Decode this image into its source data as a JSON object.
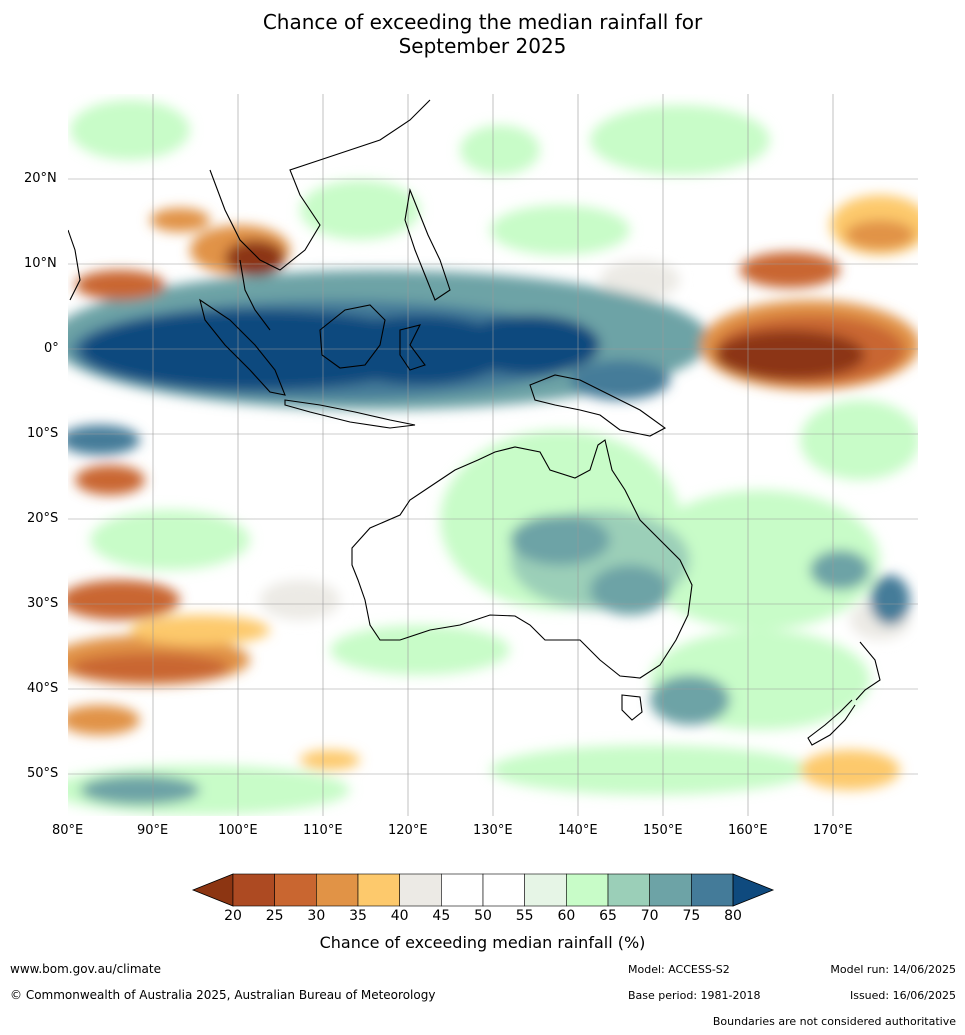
{
  "title_line1": "Chance of exceeding the median rainfall for",
  "title_line2": "September 2025",
  "map": {
    "lon_range": [
      80,
      180
    ],
    "lat_range": [
      -55,
      30
    ],
    "lon_ticks": [
      "80°E",
      "90°E",
      "100°E",
      "110°E",
      "120°E",
      "130°E",
      "140°E",
      "150°E",
      "160°E",
      "170°E"
    ],
    "lat_ticks": [
      "20°N",
      "10°N",
      "0°",
      "10°S",
      "20°S",
      "30°S",
      "40°S",
      "50°S"
    ],
    "lat_values": [
      20,
      10,
      0,
      -10,
      -20,
      -30,
      -40,
      -50
    ],
    "lon_values": [
      80,
      90,
      100,
      110,
      120,
      130,
      140,
      150,
      160,
      170
    ],
    "grid": true
  },
  "colorbar": {
    "title": "Chance of exceeding median rainfall (%)",
    "labels": [
      "20",
      "25",
      "30",
      "35",
      "40",
      "45",
      "50",
      "55",
      "60",
      "65",
      "70",
      "75",
      "80"
    ],
    "colors": [
      "#8c3512",
      "#ad4a22",
      "#c96630",
      "#e19346",
      "#fdc96c",
      "#eceae5",
      "#ffffff",
      "#ffffff",
      "#e6f5e6",
      "#c8fcc8",
      "#9bcfb8",
      "#6da3a6",
      "#447b99",
      "#0f4a7e"
    ]
  },
  "footer": {
    "website": "www.bom.gov.au/climate",
    "copyright": "© Commonwealth of Australia 2025, Australian Bureau of Meteorology",
    "model": "Model: ACCESS-S2",
    "base_period": "Base period: 1981-2018",
    "model_run": "Model run: 14/06/2025",
    "issued": "Issued: 16/06/2025",
    "disclaimer": "Boundaries are not considered authoritative"
  }
}
